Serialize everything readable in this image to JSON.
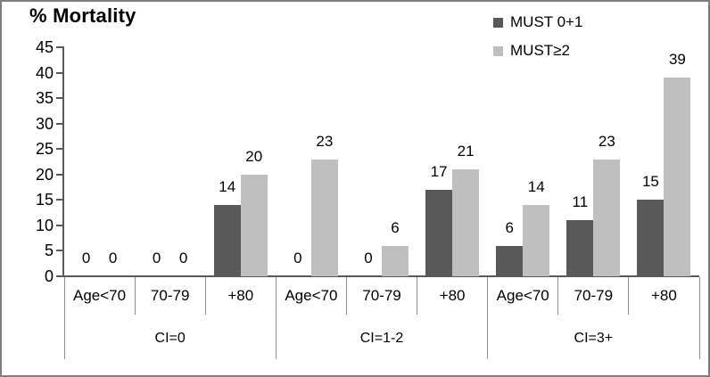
{
  "title": "% Mortality",
  "legend": [
    {
      "label": "MUST 0+1",
      "color": "#595959"
    },
    {
      "label": "MUST≥2",
      "color": "#BFBFBF"
    }
  ],
  "chart_data": {
    "type": "bar",
    "title": "% Mortality",
    "ylabel": "% Mortality",
    "ylim": [
      0,
      45
    ],
    "yticks": [
      0,
      5,
      10,
      15,
      20,
      25,
      30,
      35,
      40,
      45
    ],
    "grid": false,
    "data_labels": true,
    "legend_position": "top-right",
    "group_labels": [
      "CI=0",
      "CI=1-2",
      "CI=3+"
    ],
    "categories": [
      "Age<70",
      "70-79",
      "+80",
      "Age<70",
      "70-79",
      "+80",
      "Age<70",
      "70-79",
      "+80"
    ],
    "series": [
      {
        "name": "MUST 0+1",
        "color": "#595959",
        "values": [
          0,
          0,
          14,
          0,
          0,
          17,
          6,
          11,
          15
        ]
      },
      {
        "name": "MUST≥2",
        "color": "#BFBFBF",
        "values": [
          0,
          0,
          20,
          23,
          6,
          21,
          14,
          23,
          39
        ]
      }
    ]
  },
  "colors": {
    "axis": "#595959",
    "divider": "#8e8e8e",
    "frame_border": "#7f7f7f",
    "background": "#ffffff",
    "text": "#000000"
  }
}
